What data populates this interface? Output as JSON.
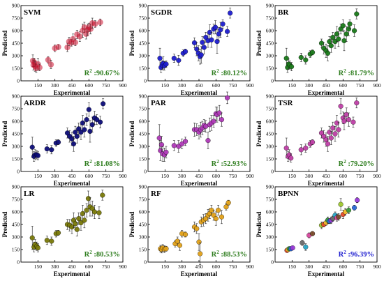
{
  "chart_data": [
    {
      "type": "scatter",
      "title": "SVM",
      "xlabel": "Experimental",
      "ylabel": "Predicted",
      "r2_prefix": "R",
      "r2_sup": "2",
      "r2_value": " :90.67%",
      "r2_color": "#2e7d1e",
      "marker_color": "#c8102e",
      "marker_style": "red",
      "xlim": [
        0,
        900
      ],
      "ylim": [
        0,
        900
      ],
      "ticks": [
        150,
        300,
        450,
        600,
        750,
        900
      ],
      "points": [
        [
          105,
          240,
          70
        ],
        [
          110,
          190,
          60
        ],
        [
          118,
          220,
          50
        ],
        [
          125,
          175,
          60
        ],
        [
          135,
          150,
          50
        ],
        [
          150,
          200,
          70
        ],
        [
          165,
          160,
          40
        ],
        [
          240,
          250,
          40
        ],
        [
          265,
          195,
          50
        ],
        [
          300,
          390,
          40
        ],
        [
          330,
          405,
          30
        ],
        [
          410,
          400,
          50
        ],
        [
          425,
          470,
          50
        ],
        [
          445,
          455,
          40
        ],
        [
          460,
          500,
          60
        ],
        [
          480,
          460,
          40
        ],
        [
          495,
          555,
          50
        ],
        [
          520,
          530,
          60
        ],
        [
          545,
          600,
          80
        ],
        [
          560,
          640,
          60
        ],
        [
          575,
          560,
          60
        ],
        [
          590,
          610,
          70
        ],
        [
          600,
          640,
          50
        ],
        [
          615,
          620,
          60
        ],
        [
          630,
          690,
          60
        ],
        [
          655,
          680,
          40
        ],
        [
          700,
          700,
          40
        ]
      ]
    },
    {
      "type": "scatter",
      "title": "SGDR",
      "xlabel": "Experimental",
      "ylabel": "Predicted",
      "r2_prefix": "R",
      "r2_sup": "2",
      "r2_value": " :80.12%",
      "r2_color": "#2e7d1e",
      "marker_color": "#1f1fd0",
      "xlim": [
        0,
        900
      ],
      "ylim": [
        0,
        900
      ],
      "ticks": [
        150,
        300,
        450,
        600,
        750,
        900
      ],
      "points": [
        [
          105,
          270,
          120
        ],
        [
          115,
          160,
          60
        ],
        [
          125,
          190,
          50
        ],
        [
          135,
          210,
          80
        ],
        [
          145,
          180,
          50
        ],
        [
          160,
          200,
          40
        ],
        [
          230,
          270,
          50
        ],
        [
          270,
          245,
          60
        ],
        [
          310,
          330,
          40
        ],
        [
          330,
          350,
          30
        ],
        [
          410,
          455,
          60
        ],
        [
          430,
          380,
          80
        ],
        [
          445,
          330,
          90
        ],
        [
          460,
          290,
          90
        ],
        [
          470,
          310,
          100
        ],
        [
          480,
          460,
          70
        ],
        [
          495,
          400,
          80
        ],
        [
          510,
          520,
          60
        ],
        [
          530,
          480,
          80
        ],
        [
          545,
          580,
          90
        ],
        [
          560,
          490,
          90
        ],
        [
          580,
          620,
          60
        ],
        [
          595,
          640,
          80
        ],
        [
          610,
          470,
          140
        ],
        [
          625,
          560,
          80
        ],
        [
          640,
          610,
          90
        ],
        [
          660,
          680,
          50
        ],
        [
          700,
          590,
          60
        ],
        [
          725,
          810,
          60
        ]
      ]
    },
    {
      "type": "scatter",
      "title": "BR",
      "xlabel": "Experimental",
      "ylabel": "Predicted",
      "r2_prefix": "R",
      "r2_sup": "2",
      "r2_value": " :81.79%",
      "r2_color": "#2e7d1e",
      "marker_color": "#1a7a1a",
      "xlim": [
        0,
        900
      ],
      "ylim": [
        0,
        900
      ],
      "ticks": [
        150,
        300,
        450,
        600,
        750,
        900
      ],
      "points": [
        [
          100,
          270,
          120
        ],
        [
          110,
          160,
          60
        ],
        [
          120,
          200,
          60
        ],
        [
          130,
          190,
          50
        ],
        [
          145,
          170,
          50
        ],
        [
          230,
          280,
          50
        ],
        [
          270,
          250,
          50
        ],
        [
          310,
          320,
          40
        ],
        [
          330,
          340,
          30
        ],
        [
          410,
          450,
          50
        ],
        [
          430,
          390,
          70
        ],
        [
          450,
          360,
          80
        ],
        [
          465,
          330,
          90
        ],
        [
          480,
          470,
          60
        ],
        [
          495,
          420,
          80
        ],
        [
          510,
          520,
          60
        ],
        [
          530,
          470,
          80
        ],
        [
          545,
          560,
          90
        ],
        [
          560,
          500,
          90
        ],
        [
          580,
          620,
          60
        ],
        [
          600,
          660,
          70
        ],
        [
          610,
          480,
          120
        ],
        [
          630,
          560,
          90
        ],
        [
          650,
          620,
          80
        ],
        [
          660,
          680,
          50
        ],
        [
          700,
          600,
          70
        ],
        [
          720,
          800,
          60
        ]
      ]
    },
    {
      "type": "scatter",
      "title": "ARDR",
      "xlabel": "Experimental",
      "ylabel": "Predicted",
      "r2_prefix": "R",
      "r2_sup": "2",
      "r2_value": " :81.08%",
      "r2_color": "#2e7d1e",
      "marker_color": "#0e0e7a",
      "xlim": [
        0,
        900
      ],
      "ylim": [
        0,
        900
      ],
      "ticks": [
        150,
        300,
        450,
        600,
        750,
        900
      ],
      "points": [
        [
          100,
          290,
          120
        ],
        [
          115,
          180,
          60
        ],
        [
          125,
          200,
          60
        ],
        [
          140,
          200,
          50
        ],
        [
          150,
          190,
          50
        ],
        [
          230,
          270,
          50
        ],
        [
          270,
          260,
          50
        ],
        [
          310,
          340,
          40
        ],
        [
          330,
          350,
          30
        ],
        [
          410,
          460,
          60
        ],
        [
          430,
          420,
          70
        ],
        [
          450,
          390,
          80
        ],
        [
          465,
          330,
          90
        ],
        [
          480,
          470,
          70
        ],
        [
          495,
          420,
          80
        ],
        [
          510,
          510,
          70
        ],
        [
          530,
          470,
          90
        ],
        [
          545,
          580,
          90
        ],
        [
          560,
          500,
          90
        ],
        [
          580,
          620,
          70
        ],
        [
          600,
          740,
          80
        ],
        [
          610,
          480,
          130
        ],
        [
          630,
          560,
          90
        ],
        [
          650,
          640,
          80
        ],
        [
          670,
          620,
          60
        ],
        [
          700,
          590,
          70
        ],
        [
          725,
          810,
          60
        ]
      ]
    },
    {
      "type": "scatter",
      "title": "PAR",
      "xlabel": "Experimental",
      "ylabel": "Predicted",
      "r2_prefix": "R",
      "r2_sup": "2",
      "r2_value": " :52.93%",
      "r2_color": "#2e7d1e",
      "marker_color": "#b03ab8",
      "xlim": [
        0,
        900
      ],
      "ylim": [
        0,
        900
      ],
      "ticks": [
        150,
        300,
        450,
        600,
        750,
        900
      ],
      "points": [
        [
          100,
          400,
          160
        ],
        [
          110,
          250,
          120
        ],
        [
          120,
          320,
          100
        ],
        [
          130,
          210,
          90
        ],
        [
          145,
          200,
          80
        ],
        [
          160,
          230,
          70
        ],
        [
          230,
          310,
          60
        ],
        [
          270,
          300,
          70
        ],
        [
          300,
          330,
          60
        ],
        [
          330,
          360,
          50
        ],
        [
          410,
          500,
          80
        ],
        [
          430,
          500,
          70
        ],
        [
          450,
          470,
          80
        ],
        [
          465,
          500,
          90
        ],
        [
          480,
          520,
          80
        ],
        [
          495,
          550,
          70
        ],
        [
          510,
          540,
          70
        ],
        [
          530,
          370,
          100
        ],
        [
          545,
          560,
          80
        ],
        [
          560,
          580,
          90
        ],
        [
          580,
          600,
          70
        ],
        [
          600,
          690,
          80
        ],
        [
          610,
          680,
          90
        ],
        [
          630,
          700,
          90
        ],
        [
          650,
          620,
          80
        ],
        [
          700,
          880,
          70
        ]
      ]
    },
    {
      "type": "scatter",
      "title": "TSR",
      "xlabel": "Experimental",
      "ylabel": "Predicted",
      "r2_prefix": "R",
      "r2_sup": "2",
      "r2_value": " :79.20%",
      "r2_color": "#2e7d1e",
      "marker_color": "#c040a8",
      "xlim": [
        0,
        900
      ],
      "ylim": [
        0,
        900
      ],
      "ticks": [
        150,
        300,
        450,
        600,
        750,
        900
      ],
      "points": [
        [
          100,
          280,
          120
        ],
        [
          115,
          180,
          60
        ],
        [
          125,
          200,
          60
        ],
        [
          140,
          160,
          50
        ],
        [
          230,
          260,
          60
        ],
        [
          270,
          280,
          50
        ],
        [
          310,
          330,
          40
        ],
        [
          330,
          350,
          30
        ],
        [
          410,
          460,
          60
        ],
        [
          430,
          420,
          70
        ],
        [
          450,
          380,
          80
        ],
        [
          465,
          330,
          90
        ],
        [
          480,
          470,
          70
        ],
        [
          495,
          400,
          80
        ],
        [
          510,
          520,
          70
        ],
        [
          530,
          450,
          90
        ],
        [
          545,
          580,
          90
        ],
        [
          560,
          500,
          90
        ],
        [
          580,
          780,
          90
        ],
        [
          600,
          640,
          70
        ],
        [
          610,
          600,
          100
        ],
        [
          630,
          680,
          80
        ],
        [
          650,
          620,
          80
        ],
        [
          690,
          590,
          60
        ],
        [
          720,
          820,
          60
        ]
      ]
    },
    {
      "type": "scatter",
      "title": "LR",
      "xlabel": "Experimental",
      "ylabel": "Predicted",
      "r2_prefix": "R",
      "r2_sup": "2",
      "r2_value": " :80.53%",
      "r2_color": "#2e7d1e",
      "marker_color": "#7a7a0a",
      "xlim": [
        0,
        900
      ],
      "ylim": [
        0,
        900
      ],
      "ticks": [
        150,
        300,
        450,
        600,
        750,
        900
      ],
      "points": [
        [
          100,
          290,
          140
        ],
        [
          115,
          180,
          60
        ],
        [
          125,
          210,
          60
        ],
        [
          140,
          190,
          50
        ],
        [
          150,
          170,
          50
        ],
        [
          230,
          260,
          50
        ],
        [
          270,
          250,
          50
        ],
        [
          310,
          340,
          40
        ],
        [
          330,
          350,
          30
        ],
        [
          410,
          450,
          60
        ],
        [
          430,
          440,
          70
        ],
        [
          450,
          420,
          80
        ],
        [
          465,
          500,
          90
        ],
        [
          480,
          460,
          70
        ],
        [
          495,
          390,
          80
        ],
        [
          510,
          520,
          70
        ],
        [
          530,
          470,
          90
        ],
        [
          545,
          580,
          100
        ],
        [
          560,
          500,
          90
        ],
        [
          580,
          620,
          80
        ],
        [
          595,
          760,
          90
        ],
        [
          610,
          660,
          110
        ],
        [
          630,
          640,
          90
        ],
        [
          650,
          600,
          80
        ],
        [
          690,
          590,
          70
        ],
        [
          720,
          800,
          60
        ]
      ]
    },
    {
      "type": "scatter",
      "title": "RF",
      "xlabel": "Experimental",
      "ylabel": "Predicted",
      "r2_prefix": "R",
      "r2_sup": "2",
      "r2_value": " :88.53%",
      "r2_color": "#2e7d1e",
      "marker_color": "#e3a21a",
      "xlim": [
        0,
        900
      ],
      "ylim": [
        0,
        900
      ],
      "ticks": [
        150,
        300,
        450,
        600,
        750,
        900
      ],
      "points": [
        [
          110,
          160,
          40
        ],
        [
          120,
          150,
          40
        ],
        [
          130,
          170,
          40
        ],
        [
          145,
          155,
          40
        ],
        [
          160,
          160,
          30
        ],
        [
          240,
          220,
          40
        ],
        [
          260,
          250,
          50
        ],
        [
          280,
          200,
          60
        ],
        [
          300,
          340,
          40
        ],
        [
          330,
          330,
          30
        ],
        [
          410,
          420,
          60
        ],
        [
          430,
          400,
          60
        ],
        [
          450,
          240,
          100
        ],
        [
          460,
          100,
          130
        ],
        [
          470,
          480,
          60
        ],
        [
          490,
          500,
          70
        ],
        [
          510,
          520,
          60
        ],
        [
          530,
          560,
          70
        ],
        [
          545,
          580,
          60
        ],
        [
          560,
          620,
          60
        ],
        [
          580,
          560,
          60
        ],
        [
          600,
          520,
          80
        ],
        [
          620,
          620,
          60
        ],
        [
          650,
          540,
          80
        ],
        [
          690,
          660,
          40
        ],
        [
          710,
          710,
          30
        ]
      ]
    },
    {
      "type": "scatter",
      "title": "BPNN",
      "xlabel": "Experimental",
      "ylabel": "Predicted",
      "r2_prefix": "R",
      "r2_sup": "2",
      "r2_value": " :96.39%",
      "r2_color": "#1f1fd0",
      "marker_color": "#888888",
      "multicolor": true,
      "xlim": [
        0,
        900
      ],
      "ylim": [
        0,
        900
      ],
      "ticks": [
        150,
        300,
        450,
        600,
        750,
        900
      ],
      "palette": [
        "#e84a2a",
        "#f2b82c",
        "#3a9a3a",
        "#2a6ad8",
        "#9a3ad8",
        "#6a6a6a",
        "#28a8c8",
        "#d84aa0",
        "#7a4a2a",
        "#a0c830"
      ],
      "points": [
        [
          105,
          140,
          20
        ],
        [
          115,
          150,
          20
        ],
        [
          125,
          160,
          20
        ],
        [
          140,
          160,
          20
        ],
        [
          155,
          170,
          20
        ],
        [
          240,
          230,
          30
        ],
        [
          270,
          180,
          40
        ],
        [
          300,
          320,
          30
        ],
        [
          330,
          340,
          20
        ],
        [
          410,
          440,
          40
        ],
        [
          430,
          450,
          30
        ],
        [
          450,
          470,
          30
        ],
        [
          465,
          500,
          40
        ],
        [
          480,
          490,
          30
        ],
        [
          495,
          500,
          40
        ],
        [
          510,
          520,
          30
        ],
        [
          530,
          560,
          40
        ],
        [
          545,
          530,
          40
        ],
        [
          560,
          540,
          40
        ],
        [
          580,
          690,
          70
        ],
        [
          600,
          570,
          50
        ],
        [
          620,
          600,
          40
        ],
        [
          650,
          620,
          40
        ],
        [
          700,
          650,
          30
        ],
        [
          725,
          740,
          30
        ]
      ]
    }
  ]
}
